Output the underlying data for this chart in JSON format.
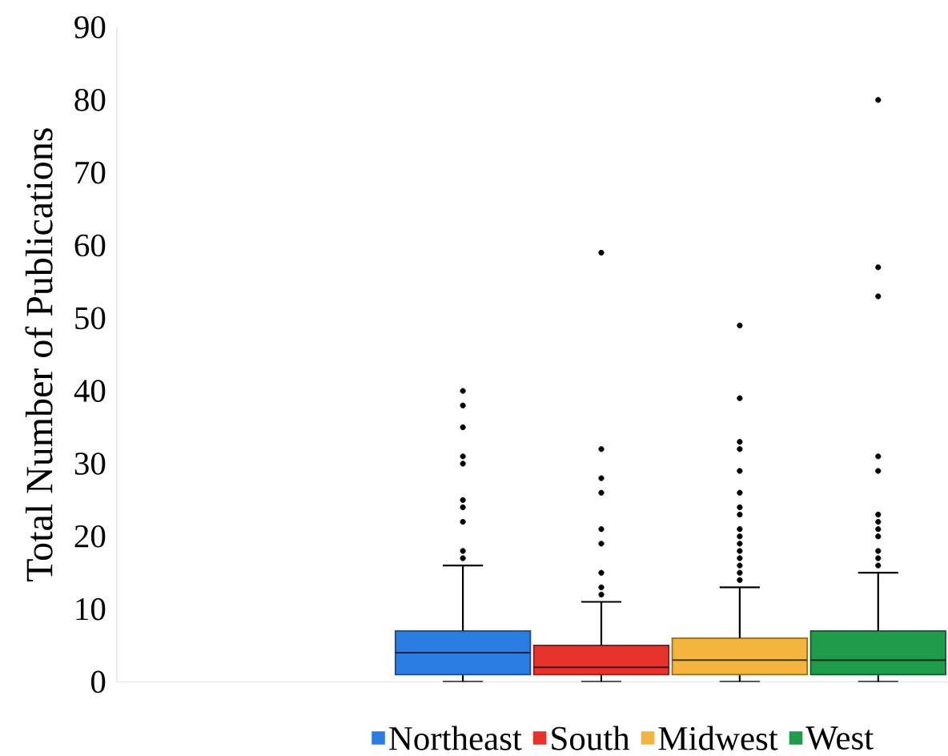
{
  "chart_data": {
    "type": "box",
    "ylabel": "Total Number of Publications",
    "categories": [
      null,
      null,
      null,
      null,
      null,
      null
    ],
    "series": [
      {
        "name": "Northeast",
        "color": "#2a7de1",
        "boxes": [
          null,
          null,
          {
            "low": 0,
            "q1": 1,
            "median": 4,
            "q3": 7,
            "high": 16,
            "outliers": [
              17,
              18,
              22,
              24,
              25,
              30,
              31,
              35,
              38,
              40
            ]
          },
          null,
          null,
          null
        ]
      },
      {
        "name": "South",
        "color": "#e8322c",
        "boxes": [
          null,
          null,
          null,
          {
            "low": 0,
            "q1": 1,
            "median": 2,
            "q3": 5,
            "high": 11,
            "outliers": [
              12,
              13,
              15,
              19,
              21,
              26,
              28,
              32,
              59
            ]
          },
          null,
          null
        ]
      },
      {
        "name": "Midwest",
        "color": "#f4b53f",
        "boxes": [
          null,
          null,
          null,
          null,
          {
            "low": 0,
            "q1": 1,
            "median": 3,
            "q3": 6,
            "high": 13,
            "outliers": [
              14,
              15,
              16,
              17,
              18,
              19,
              20,
              21,
              23,
              24,
              26,
              29,
              32,
              33,
              39,
              49
            ]
          },
          null
        ]
      },
      {
        "name": "West",
        "color": "#1e9b4b",
        "boxes": [
          null,
          null,
          null,
          null,
          null,
          {
            "low": 0,
            "q1": 1,
            "median": 3,
            "q3": 7,
            "high": 15,
            "outliers": [
              16,
              17,
              18,
              20,
              21,
              22,
              23,
              29,
              31,
              53,
              57,
              80
            ]
          }
        ]
      }
    ],
    "ylim": [
      0,
      90
    ],
    "yticks": [
      0,
      10,
      20,
      30,
      40,
      50,
      60,
      70,
      80,
      90
    ],
    "legend": "bottom",
    "tick_labels": "y"
  }
}
